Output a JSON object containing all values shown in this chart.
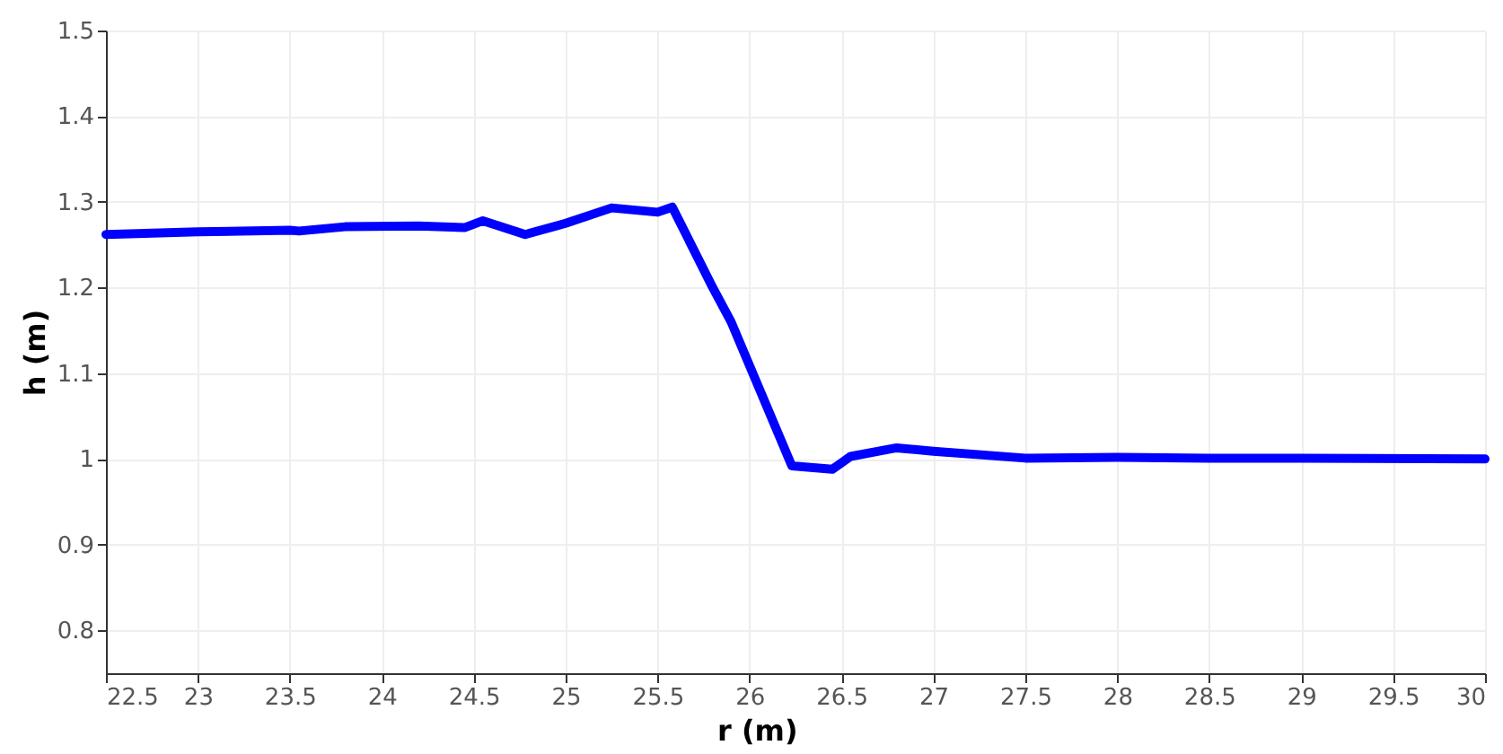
{
  "chart_data": {
    "type": "line",
    "xlabel": "r (m)",
    "ylabel": "h (m)",
    "x": [
      22.5,
      23,
      23.5,
      23.55,
      23.8,
      24.2,
      24.45,
      24.55,
      24.78,
      25,
      25.25,
      25.5,
      25.58,
      25.8,
      25.9,
      26.23,
      26.45,
      26.55,
      26.8,
      27,
      27.5,
      28,
      28.5,
      29,
      30
    ],
    "series": [
      {
        "color": "#0000ff",
        "values": [
          1.262,
          1.265,
          1.267,
          1.266,
          1.271,
          1.272,
          1.27,
          1.278,
          1.262,
          1.275,
          1.293,
          1.288,
          1.294,
          1.2,
          1.16,
          0.992,
          0.988,
          1.003,
          1.013,
          1.009,
          1.001,
          1.002,
          1.001,
          1.001,
          1.0
        ]
      }
    ],
    "xlim": [
      22.5,
      30
    ],
    "ylim": [
      0.75,
      1.5
    ],
    "xticks": [
      22.5,
      23,
      23.5,
      24,
      24.5,
      25,
      25.5,
      26,
      26.5,
      27,
      27.5,
      28,
      28.5,
      29,
      29.5,
      30
    ],
    "yticks": [
      0.8,
      0.9,
      1,
      1.1,
      1.2,
      1.3,
      1.4,
      1.5
    ],
    "grid": true,
    "marker": "none",
    "line_style": "solid"
  }
}
